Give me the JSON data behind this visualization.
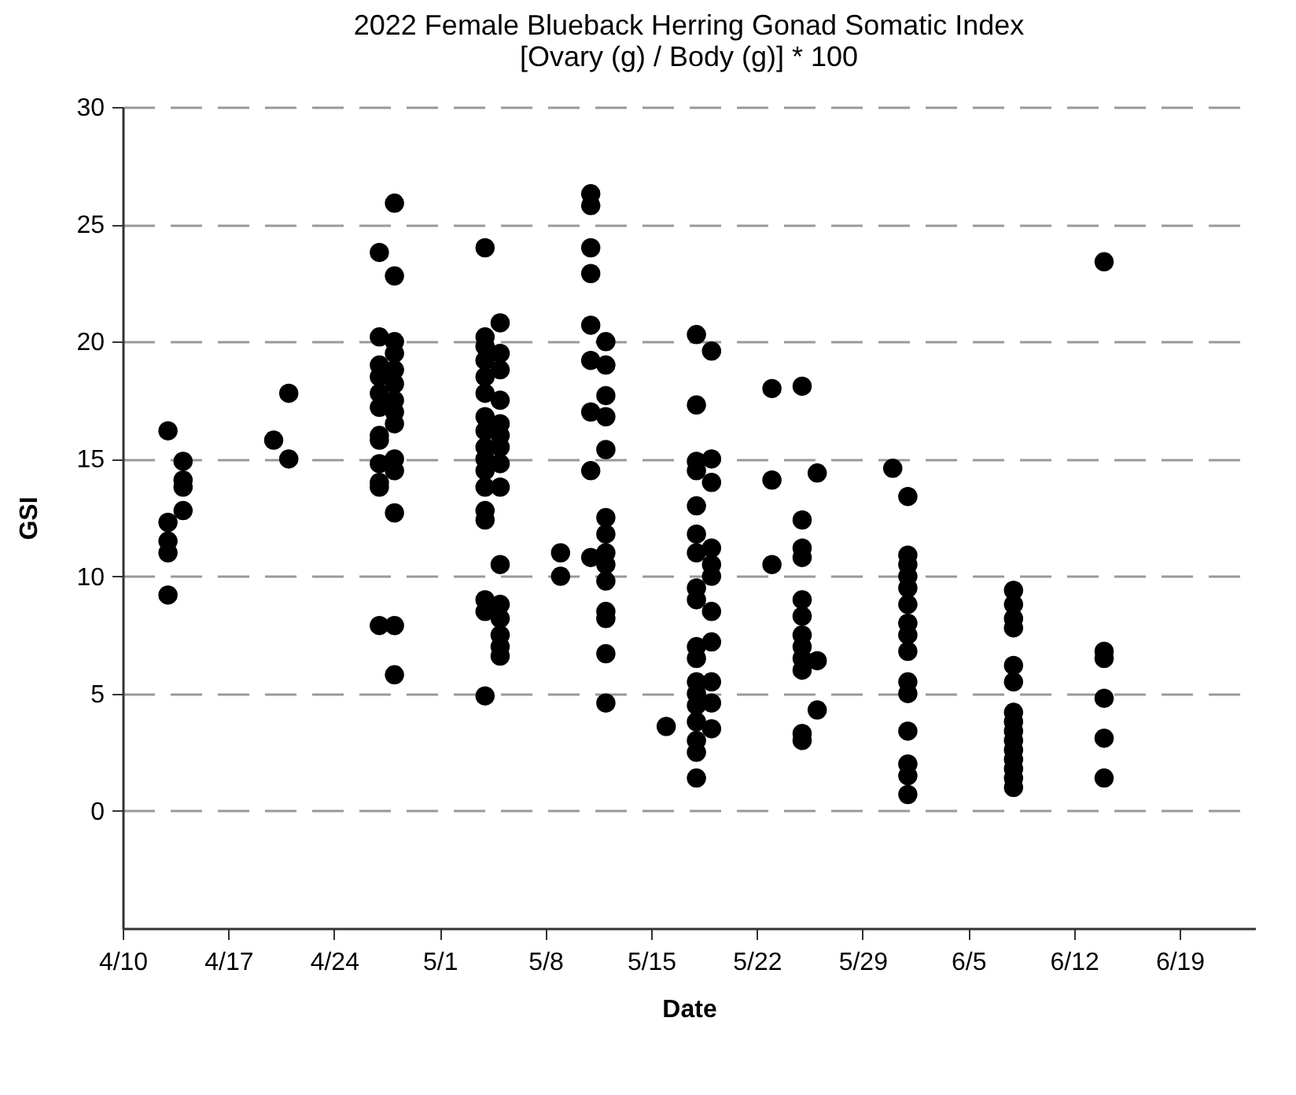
{
  "chart_data": {
    "type": "scatter",
    "title": "2022 Female Blueback Herring Gonad Somatic Index",
    "subtitle": "[Ovary (g) / Body (g)] * 100",
    "xlabel": "Date",
    "ylabel": "GSI",
    "x": [
      "--04-13",
      "--04-13",
      "--04-13",
      "--04-13",
      "--04-13",
      "--04-14",
      "--04-14",
      "--04-14",
      "--04-14",
      "--04-20",
      "--04-21",
      "--04-21",
      "--04-27",
      "--04-27",
      "--04-27",
      "--04-27",
      "--04-27",
      "--04-27",
      "--04-27",
      "--04-27",
      "--04-27",
      "--04-27",
      "--04-27",
      "--04-27",
      "--04-28",
      "--04-28",
      "--04-28",
      "--04-28",
      "--04-28",
      "--04-28",
      "--04-28",
      "--04-28",
      "--04-28",
      "--04-28",
      "--04-28",
      "--04-28",
      "--04-28",
      "--04-28",
      "--05-04",
      "--05-04",
      "--05-04",
      "--05-04",
      "--05-04",
      "--05-04",
      "--05-04",
      "--05-04",
      "--05-04",
      "--05-04",
      "--05-04",
      "--05-04",
      "--05-04",
      "--05-04",
      "--05-04",
      "--05-04",
      "--05-04",
      "--05-05",
      "--05-05",
      "--05-05",
      "--05-05",
      "--05-05",
      "--05-05",
      "--05-05",
      "--05-05",
      "--05-05",
      "--05-05",
      "--05-05",
      "--05-05",
      "--05-05",
      "--05-05",
      "--05-05",
      "--05-09",
      "--05-09",
      "--05-11",
      "--05-11",
      "--05-11",
      "--05-11",
      "--05-11",
      "--05-11",
      "--05-11",
      "--05-11",
      "--05-11",
      "--05-12",
      "--05-12",
      "--05-12",
      "--05-12",
      "--05-12",
      "--05-12",
      "--05-12",
      "--05-12",
      "--05-12",
      "--05-12",
      "--05-12",
      "--05-12",
      "--05-12",
      "--05-12",
      "--05-16",
      "--05-18",
      "--05-18",
      "--05-18",
      "--05-18",
      "--05-18",
      "--05-18",
      "--05-18",
      "--05-18",
      "--05-18",
      "--05-18",
      "--05-18",
      "--05-18",
      "--05-18",
      "--05-18",
      "--05-18",
      "--05-18",
      "--05-18",
      "--05-18",
      "--05-19",
      "--05-19",
      "--05-19",
      "--05-19",
      "--05-19",
      "--05-19",
      "--05-19",
      "--05-19",
      "--05-19",
      "--05-19",
      "--05-19",
      "--05-23",
      "--05-23",
      "--05-23",
      "--05-25",
      "--05-25",
      "--05-25",
      "--05-25",
      "--05-25",
      "--05-25",
      "--05-25",
      "--05-25",
      "--05-25",
      "--05-25",
      "--05-25",
      "--05-25",
      "--05-26",
      "--05-26",
      "--05-26",
      "--05-31",
      "--06-01",
      "--06-01",
      "--06-01",
      "--06-01",
      "--06-01",
      "--06-01",
      "--06-01",
      "--06-01",
      "--06-01",
      "--06-01",
      "--06-01",
      "--06-01",
      "--06-01",
      "--06-01",
      "--06-01",
      "--06-08",
      "--06-08",
      "--06-08",
      "--06-08",
      "--06-08",
      "--06-08",
      "--06-08",
      "--06-08",
      "--06-08",
      "--06-08",
      "--06-08",
      "--06-08",
      "--06-08",
      "--06-08",
      "--06-08",
      "--06-14",
      "--06-14",
      "--06-14",
      "--06-14",
      "--06-14",
      "--06-14"
    ],
    "series": [
      {
        "color": "#000000",
        "values": [
          16.2,
          12.3,
          11.5,
          11.0,
          9.2,
          14.9,
          14.1,
          13.8,
          12.8,
          15.8,
          17.8,
          15.0,
          23.8,
          20.2,
          19.0,
          18.5,
          17.8,
          17.2,
          16.0,
          15.8,
          14.8,
          14.0,
          13.8,
          7.9,
          25.9,
          22.8,
          20.0,
          19.5,
          18.8,
          18.2,
          17.5,
          17.0,
          16.5,
          15.0,
          14.5,
          12.7,
          7.9,
          5.8,
          24.0,
          20.2,
          19.8,
          19.2,
          18.5,
          17.8,
          16.8,
          16.2,
          15.5,
          15.0,
          14.5,
          13.8,
          12.8,
          12.4,
          9.0,
          8.5,
          4.9,
          20.8,
          19.5,
          18.8,
          17.5,
          16.5,
          16.0,
          15.5,
          14.8,
          13.8,
          10.5,
          8.8,
          8.2,
          7.5,
          7.0,
          6.6,
          11.0,
          10.0,
          26.3,
          25.8,
          24.0,
          22.9,
          20.7,
          19.2,
          17.0,
          14.5,
          10.8,
          20.0,
          19.0,
          17.7,
          16.8,
          15.4,
          12.5,
          11.8,
          11.0,
          10.5,
          9.8,
          8.5,
          8.2,
          6.7,
          4.6,
          3.6,
          20.3,
          17.3,
          14.9,
          14.5,
          13.0,
          11.8,
          11.0,
          9.5,
          9.0,
          7.0,
          6.5,
          5.5,
          5.0,
          4.5,
          3.8,
          3.0,
          2.5,
          1.4,
          19.6,
          15.0,
          14.0,
          11.2,
          10.5,
          10.0,
          8.5,
          7.2,
          5.5,
          4.6,
          3.5,
          18.0,
          14.1,
          10.5,
          18.1,
          12.4,
          11.2,
          10.8,
          9.0,
          8.3,
          7.5,
          7.0,
          6.5,
          6.0,
          3.3,
          3.0,
          14.4,
          6.4,
          4.3,
          14.6,
          13.4,
          10.9,
          10.5,
          10.0,
          9.5,
          8.8,
          8.0,
          7.5,
          6.8,
          5.5,
          5.0,
          3.4,
          2.0,
          1.5,
          0.7,
          9.4,
          8.8,
          8.2,
          7.8,
          6.2,
          5.5,
          4.2,
          3.8,
          3.4,
          3.0,
          2.6,
          2.2,
          1.8,
          1.4,
          1.0,
          23.4,
          6.8,
          6.5,
          4.8,
          3.1,
          1.4
        ]
      }
    ],
    "xlim": [
      "--04-10",
      "--06-24"
    ],
    "xticks": [
      {
        "value": "--04-10",
        "label": "4/10"
      },
      {
        "value": "--04-17",
        "label": "4/17"
      },
      {
        "value": "--04-24",
        "label": "4/24"
      },
      {
        "value": "--05-01",
        "label": "5/1"
      },
      {
        "value": "--05-08",
        "label": "5/8"
      },
      {
        "value": "--05-15",
        "label": "5/15"
      },
      {
        "value": "--05-22",
        "label": "5/22"
      },
      {
        "value": "--05-29",
        "label": "5/29"
      },
      {
        "value": "--06-05",
        "label": "6/5"
      },
      {
        "value": "--06-12",
        "label": "6/12"
      },
      {
        "value": "--06-19",
        "label": "6/19"
      }
    ],
    "ylim": [
      -5,
      30
    ],
    "yticks": [
      0,
      5,
      10,
      15,
      20,
      25,
      30
    ],
    "grid": "y",
    "marker": "circle"
  }
}
